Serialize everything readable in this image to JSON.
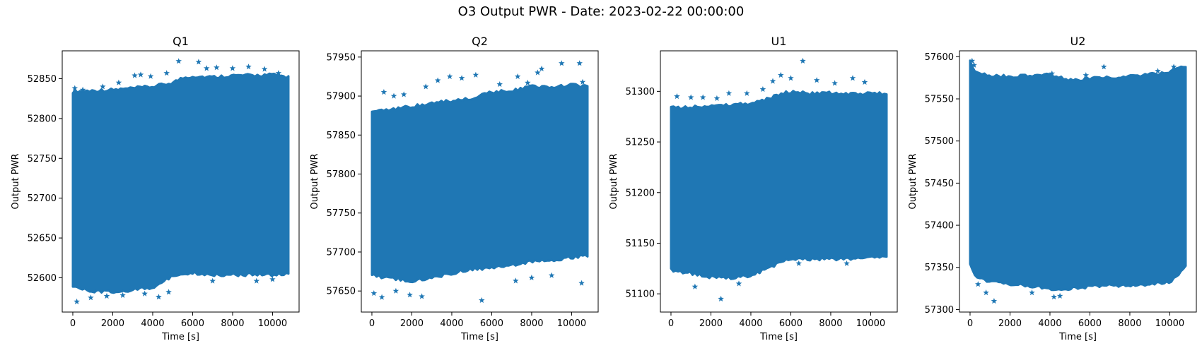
{
  "figure": {
    "title": "O3 Output PWR - Date: 2023-02-22 00:00:00"
  },
  "colors": {
    "marker": "#1f77b4",
    "axis": "#000000",
    "background": "#ffffff"
  },
  "chart_data": [
    {
      "type": "scatter",
      "marker": "star",
      "title": "Q1",
      "xlabel": "Time [s]",
      "ylabel": "Output PWR",
      "xlim": [
        -530,
        11330
      ],
      "ylim": [
        52557,
        52885
      ],
      "xticks": [
        0,
        2000,
        4000,
        6000,
        8000,
        10000
      ],
      "yticks": [
        52600,
        52650,
        52700,
        52750,
        52800,
        52850
      ],
      "x_range": [
        0,
        10800
      ],
      "band": {
        "x": [
          0,
          1000,
          2000,
          3000,
          4000,
          5000,
          5500,
          6000,
          7000,
          8000,
          9000,
          10000,
          10800
        ],
        "upper": [
          52832,
          52833,
          52834,
          52836,
          52838,
          52843,
          52849,
          52851,
          52850,
          52852,
          52852,
          52853,
          52850
        ],
        "lower": [
          52590,
          52585,
          52584,
          52587,
          52590,
          52604,
          52608,
          52608,
          52606,
          52606,
          52606,
          52606,
          52607
        ]
      },
      "outliers": {
        "x": [
          100,
          500,
          1500,
          2300,
          3100,
          3400,
          3900,
          4700,
          5300,
          6300,
          6700,
          7200,
          8000,
          8800,
          9600,
          10300,
          200,
          900,
          1700,
          2500,
          3600,
          4300,
          4800,
          7000,
          9200,
          10000
        ],
        "y": [
          52838,
          52836,
          52840,
          52845,
          52854,
          52855,
          52853,
          52857,
          52872,
          52871,
          52863,
          52864,
          52863,
          52865,
          52862,
          52857,
          52570,
          52575,
          52577,
          52578,
          52580,
          52576,
          52582,
          52596,
          52596,
          52598
        ]
      }
    },
    {
      "type": "scatter",
      "marker": "star",
      "title": "Q2",
      "xlabel": "Time [s]",
      "ylabel": "Output PWR",
      "xlim": [
        -530,
        11330
      ],
      "ylim": [
        57623,
        57958
      ],
      "xticks": [
        0,
        2000,
        4000,
        6000,
        8000,
        10000
      ],
      "yticks": [
        57650,
        57700,
        57750,
        57800,
        57850,
        57900,
        57950
      ],
      "x_range": [
        0,
        10800
      ],
      "band": {
        "x": [
          0,
          1000,
          2000,
          3000,
          4000,
          5000,
          6000,
          7000,
          8000,
          9000,
          10000,
          10800
        ],
        "upper": [
          57878,
          57880,
          57885,
          57888,
          57892,
          57895,
          57903,
          57905,
          57910,
          57910,
          57912,
          57910
        ],
        "lower": [
          57672,
          57668,
          57665,
          57668,
          57675,
          57680,
          57682,
          57685,
          57690,
          57692,
          57695,
          57698
        ]
      },
      "outliers": {
        "x": [
          600,
          1100,
          1600,
          2700,
          3300,
          3900,
          4500,
          5200,
          6400,
          7300,
          7800,
          8300,
          8500,
          9500,
          10400,
          10550,
          100,
          500,
          1200,
          1900,
          2500,
          5500,
          7200,
          8000,
          9000,
          10500
        ],
        "y": [
          57905,
          57900,
          57902,
          57912,
          57920,
          57925,
          57923,
          57927,
          57915,
          57925,
          57917,
          57930,
          57935,
          57942,
          57942,
          57918,
          57647,
          57642,
          57650,
          57645,
          57643,
          57638,
          57663,
          57667,
          57670,
          57660
        ]
      }
    },
    {
      "type": "scatter",
      "marker": "star",
      "title": "U1",
      "xlabel": "Time [s]",
      "ylabel": "Output PWR",
      "xlim": [
        -530,
        11330
      ],
      "ylim": [
        51082,
        51340
      ],
      "xticks": [
        0,
        2000,
        4000,
        6000,
        8000,
        10000
      ],
      "yticks": [
        51100,
        51150,
        51200,
        51250,
        51300
      ],
      "x_range": [
        0,
        10800
      ],
      "band": {
        "x": [
          0,
          1000,
          2000,
          3000,
          4000,
          5000,
          5500,
          6000,
          7000,
          8000,
          9000,
          10000,
          10800
        ],
        "upper": [
          51282,
          51283,
          51284,
          51285,
          51286,
          51292,
          51296,
          51298,
          51296,
          51297,
          51296,
          51296,
          51296
        ],
        "lower": [
          51125,
          51122,
          51118,
          51117,
          51120,
          51128,
          51133,
          51136,
          51136,
          51136,
          51136,
          51137,
          51138
        ]
      },
      "outliers": {
        "x": [
          300,
          1000,
          1600,
          2300,
          2900,
          3800,
          4600,
          5100,
          5500,
          6000,
          6600,
          7300,
          8200,
          9100,
          9700,
          2500,
          1200,
          3400,
          6400,
          8800
        ],
        "y": [
          51295,
          51294,
          51294,
          51293,
          51298,
          51298,
          51302,
          51310,
          51316,
          51313,
          51330,
          51311,
          51308,
          51313,
          51309,
          51095,
          51107,
          51110,
          51130,
          51130
        ]
      }
    },
    {
      "type": "scatter",
      "marker": "star",
      "title": "U2",
      "xlabel": "Time [s]",
      "ylabel": "Output PWR",
      "xlim": [
        -530,
        11330
      ],
      "ylim": [
        57297,
        57607
      ],
      "xticks": [
        0,
        2000,
        4000,
        6000,
        8000,
        10000
      ],
      "yticks": [
        57300,
        57350,
        57400,
        57450,
        57500,
        57550,
        57600
      ],
      "x_range": [
        0,
        10800
      ],
      "band": {
        "x": [
          0,
          300,
          1000,
          2000,
          3000,
          4000,
          5000,
          6000,
          7000,
          8000,
          9000,
          10000,
          10500,
          10800
        ],
        "upper": [
          57592,
          57580,
          57575,
          57575,
          57575,
          57577,
          57570,
          57572,
          57573,
          57575,
          57577,
          57580,
          57585,
          57585
        ],
        "lower": [
          57355,
          57342,
          57335,
          57332,
          57330,
          57326,
          57327,
          57329,
          57331,
          57330,
          57332,
          57335,
          57345,
          57352
        ]
      },
      "outliers": {
        "x": [
          100,
          200,
          4100,
          5800,
          6700,
          9400,
          10200,
          400,
          800,
          1200,
          4200,
          4500,
          3100
        ],
        "y": [
          57595,
          57590,
          57580,
          57578,
          57588,
          57583,
          57588,
          57330,
          57320,
          57310,
          57315,
          57316,
          57320
        ]
      }
    }
  ]
}
